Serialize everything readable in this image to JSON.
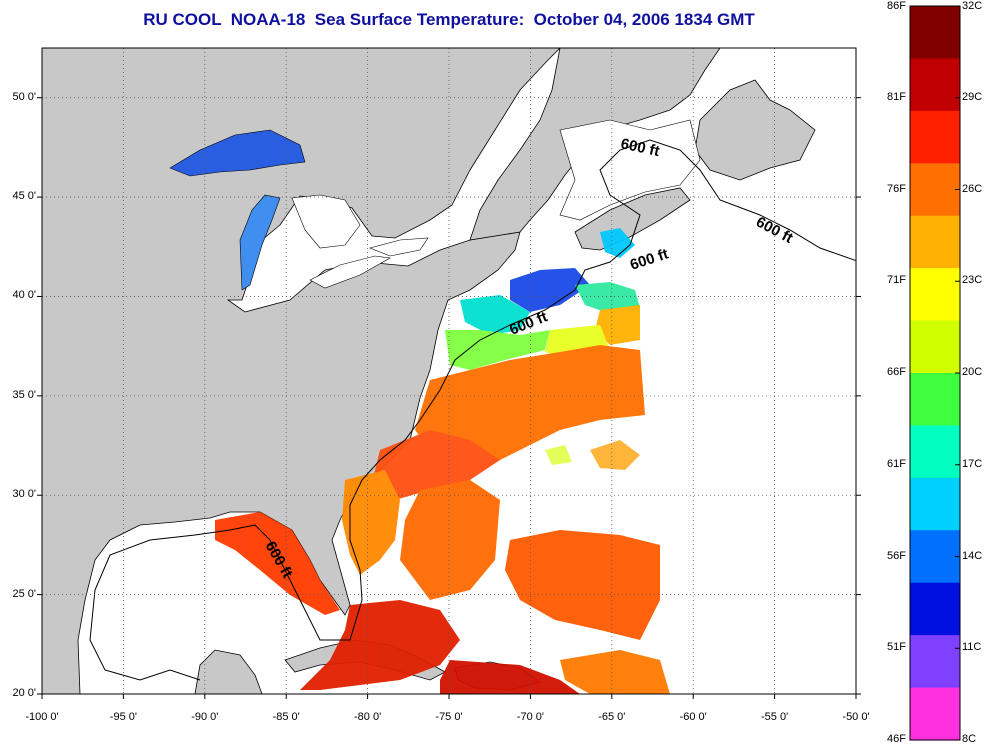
{
  "title": "RU COOL  NOAA-18  Sea Surface Temperature:  October 04, 2006 1834 GMT",
  "contour_label": "600 ft",
  "map": {
    "lon_range": [
      -100,
      -50
    ],
    "lat_range": [
      20,
      52.5
    ],
    "lon_ticks": [
      "-100 0'",
      "-95 0'",
      "-90 0'",
      "-85 0'",
      "-80 0'",
      "-75 0'",
      "-70 0'",
      "-65 0'",
      "-60 0'",
      "-55 0'",
      "-50 0'"
    ],
    "lat_ticks": [
      "20 0'",
      "25 0'",
      "30 0'",
      "35 0'",
      "40 0'",
      "45 0'",
      "50 0'"
    ],
    "land_color": "#c8c8c8",
    "no_data_color": "#ffffff"
  },
  "colorbar": {
    "celsius_ticks": [
      "8C",
      "11C",
      "14C",
      "17C",
      "20C",
      "23C",
      "26C",
      "29C",
      "32C"
    ],
    "fahrenheit_ticks": [
      "46F",
      "51F",
      "56F",
      "61F",
      "66F",
      "71F",
      "76F",
      "81F",
      "86F"
    ],
    "range_c": [
      8,
      32
    ],
    "colors": [
      "#ff30e0",
      "#8040ff",
      "#0010e0",
      "#0070ff",
      "#00d0ff",
      "#00ffc0",
      "#40ff40",
      "#d0ff00",
      "#ffff00",
      "#ffb000",
      "#ff7000",
      "#ff2000",
      "#c00000",
      "#800000"
    ]
  }
}
